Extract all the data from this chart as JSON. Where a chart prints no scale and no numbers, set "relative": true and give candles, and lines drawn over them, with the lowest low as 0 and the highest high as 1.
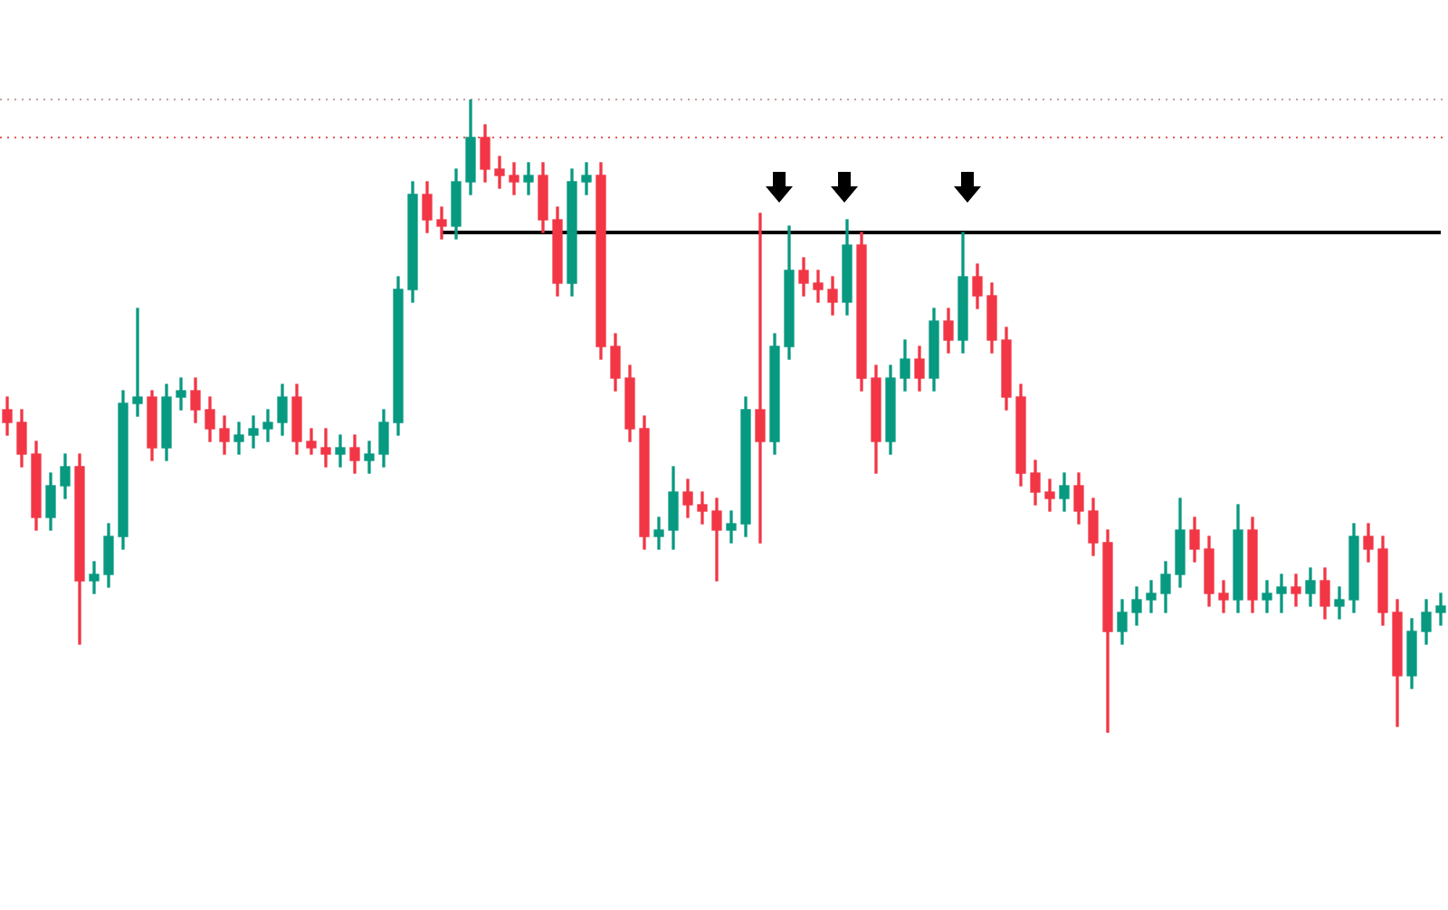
{
  "chart_data": {
    "type": "candlestick",
    "relative": true,
    "legend": false,
    "categories": [
      null,
      null,
      null,
      null,
      null,
      null,
      null,
      null,
      null,
      null,
      null,
      null,
      null,
      null,
      null,
      null,
      null,
      null,
      null,
      null,
      null,
      null,
      null,
      null,
      null,
      null,
      null,
      null,
      null,
      null,
      null,
      null,
      null,
      null,
      null,
      null,
      null,
      null,
      null,
      null,
      null,
      null,
      null,
      null,
      null,
      null,
      null,
      null,
      null,
      null,
      null,
      null,
      null,
      null,
      null,
      null,
      null,
      null,
      null,
      null,
      null,
      null,
      null,
      null,
      null,
      null,
      null,
      null,
      null,
      null,
      null,
      null,
      null,
      null,
      null,
      null,
      null,
      null,
      null,
      null,
      null,
      null,
      null,
      null,
      null,
      null,
      null,
      null,
      null,
      null,
      null,
      null,
      null,
      null,
      null,
      null,
      null,
      null,
      null,
      null
    ],
    "ohlc": [
      [
        0.51,
        0.53,
        0.47,
        0.49
      ],
      [
        0.49,
        0.51,
        0.42,
        0.44
      ],
      [
        0.44,
        0.46,
        0.32,
        0.34
      ],
      [
        0.34,
        0.41,
        0.32,
        0.39
      ],
      [
        0.39,
        0.44,
        0.37,
        0.42
      ],
      [
        0.42,
        0.44,
        0.14,
        0.24
      ],
      [
        0.24,
        0.27,
        0.22,
        0.25
      ],
      [
        0.25,
        0.33,
        0.23,
        0.31
      ],
      [
        0.31,
        0.54,
        0.29,
        0.52
      ],
      [
        0.52,
        0.67,
        0.5,
        0.53
      ],
      [
        0.53,
        0.54,
        0.43,
        0.45
      ],
      [
        0.45,
        0.55,
        0.43,
        0.53
      ],
      [
        0.53,
        0.56,
        0.51,
        0.54
      ],
      [
        0.54,
        0.56,
        0.49,
        0.51
      ],
      [
        0.51,
        0.53,
        0.46,
        0.48
      ],
      [
        0.48,
        0.5,
        0.44,
        0.46
      ],
      [
        0.46,
        0.49,
        0.44,
        0.47
      ],
      [
        0.47,
        0.5,
        0.45,
        0.48
      ],
      [
        0.48,
        0.51,
        0.46,
        0.49
      ],
      [
        0.49,
        0.55,
        0.47,
        0.53
      ],
      [
        0.53,
        0.55,
        0.44,
        0.46
      ],
      [
        0.46,
        0.48,
        0.44,
        0.45
      ],
      [
        0.45,
        0.48,
        0.42,
        0.44
      ],
      [
        0.44,
        0.47,
        0.42,
        0.45
      ],
      [
        0.45,
        0.47,
        0.41,
        0.43
      ],
      [
        0.43,
        0.46,
        0.41,
        0.44
      ],
      [
        0.44,
        0.51,
        0.42,
        0.49
      ],
      [
        0.49,
        0.72,
        0.47,
        0.7
      ],
      [
        0.7,
        0.87,
        0.68,
        0.85
      ],
      [
        0.85,
        0.87,
        0.79,
        0.81
      ],
      [
        0.81,
        0.83,
        0.78,
        0.8
      ],
      [
        0.8,
        0.89,
        0.78,
        0.87
      ],
      [
        0.87,
        1.0,
        0.85,
        0.94
      ],
      [
        0.94,
        0.96,
        0.87,
        0.89
      ],
      [
        0.89,
        0.91,
        0.86,
        0.88
      ],
      [
        0.88,
        0.9,
        0.85,
        0.87
      ],
      [
        0.87,
        0.9,
        0.85,
        0.88
      ],
      [
        0.88,
        0.9,
        0.79,
        0.81
      ],
      [
        0.81,
        0.83,
        0.69,
        0.71
      ],
      [
        0.71,
        0.89,
        0.69,
        0.87
      ],
      [
        0.87,
        0.9,
        0.85,
        0.88
      ],
      [
        0.88,
        0.9,
        0.59,
        0.61
      ],
      [
        0.61,
        0.63,
        0.54,
        0.56
      ],
      [
        0.56,
        0.58,
        0.46,
        0.48
      ],
      [
        0.48,
        0.5,
        0.29,
        0.31
      ],
      [
        0.31,
        0.34,
        0.29,
        0.32
      ],
      [
        0.32,
        0.42,
        0.29,
        0.38
      ],
      [
        0.38,
        0.4,
        0.34,
        0.36
      ],
      [
        0.36,
        0.38,
        0.33,
        0.35
      ],
      [
        0.35,
        0.37,
        0.24,
        0.32
      ],
      [
        0.32,
        0.35,
        0.3,
        0.33
      ],
      [
        0.33,
        0.53,
        0.31,
        0.51
      ],
      [
        0.51,
        0.82,
        0.3,
        0.46
      ],
      [
        0.46,
        0.63,
        0.44,
        0.61
      ],
      [
        0.61,
        0.8,
        0.59,
        0.73
      ],
      [
        0.73,
        0.75,
        0.69,
        0.71
      ],
      [
        0.71,
        0.73,
        0.68,
        0.7
      ],
      [
        0.7,
        0.72,
        0.66,
        0.68
      ],
      [
        0.68,
        0.81,
        0.66,
        0.77
      ],
      [
        0.77,
        0.79,
        0.54,
        0.56
      ],
      [
        0.56,
        0.58,
        0.41,
        0.46
      ],
      [
        0.46,
        0.58,
        0.44,
        0.56
      ],
      [
        0.56,
        0.62,
        0.54,
        0.59
      ],
      [
        0.59,
        0.61,
        0.54,
        0.56
      ],
      [
        0.56,
        0.67,
        0.54,
        0.65
      ],
      [
        0.65,
        0.67,
        0.6,
        0.62
      ],
      [
        0.62,
        0.79,
        0.6,
        0.72
      ],
      [
        0.72,
        0.74,
        0.67,
        0.69
      ],
      [
        0.69,
        0.71,
        0.6,
        0.62
      ],
      [
        0.62,
        0.64,
        0.51,
        0.53
      ],
      [
        0.53,
        0.55,
        0.39,
        0.41
      ],
      [
        0.41,
        0.43,
        0.36,
        0.38
      ],
      [
        0.38,
        0.4,
        0.35,
        0.37
      ],
      [
        0.37,
        0.41,
        0.35,
        0.39
      ],
      [
        0.39,
        0.41,
        0.33,
        0.35
      ],
      [
        0.35,
        0.37,
        0.28,
        0.3
      ],
      [
        0.3,
        0.32,
        0.0,
        0.16
      ],
      [
        0.16,
        0.21,
        0.14,
        0.19
      ],
      [
        0.19,
        0.23,
        0.17,
        0.21
      ],
      [
        0.21,
        0.24,
        0.19,
        0.22
      ],
      [
        0.22,
        0.27,
        0.19,
        0.25
      ],
      [
        0.25,
        0.37,
        0.23,
        0.32
      ],
      [
        0.32,
        0.34,
        0.27,
        0.29
      ],
      [
        0.29,
        0.31,
        0.2,
        0.22
      ],
      [
        0.22,
        0.24,
        0.19,
        0.21
      ],
      [
        0.21,
        0.36,
        0.19,
        0.32
      ],
      [
        0.32,
        0.34,
        0.19,
        0.21
      ],
      [
        0.21,
        0.24,
        0.19,
        0.22
      ],
      [
        0.22,
        0.25,
        0.19,
        0.23
      ],
      [
        0.23,
        0.25,
        0.2,
        0.22
      ],
      [
        0.22,
        0.26,
        0.2,
        0.24
      ],
      [
        0.24,
        0.26,
        0.18,
        0.2
      ],
      [
        0.2,
        0.23,
        0.18,
        0.21
      ],
      [
        0.21,
        0.33,
        0.19,
        0.31
      ],
      [
        0.31,
        0.33,
        0.27,
        0.29
      ],
      [
        0.29,
        0.31,
        0.17,
        0.19
      ],
      [
        0.19,
        0.21,
        0.01,
        0.09
      ],
      [
        0.09,
        0.18,
        0.07,
        0.16
      ],
      [
        0.16,
        0.21,
        0.14,
        0.19
      ],
      [
        0.19,
        0.22,
        0.17,
        0.2
      ]
    ],
    "colors": [
      "#f23645",
      "#f23645",
      "#f23645",
      "#089981",
      "#089981",
      "#f23645",
      "#089981",
      "#089981",
      "#089981",
      "#089981",
      "#f23645",
      "#089981",
      "#089981",
      "#f23645",
      "#f23645",
      "#f23645",
      "#089981",
      "#089981",
      "#089981",
      "#089981",
      "#f23645",
      "#f23645",
      "#f23645",
      "#089981",
      "#f23645",
      "#089981",
      "#089981",
      "#089981",
      "#089981",
      "#f23645",
      "#f23645",
      "#089981",
      "#089981",
      "#f23645",
      "#f23645",
      "#f23645",
      "#089981",
      "#f23645",
      "#f23645",
      "#089981",
      "#089981",
      "#f23645",
      "#f23645",
      "#f23645",
      "#f23645",
      "#089981",
      "#089981",
      "#f23645",
      "#f23645",
      "#f23645",
      "#089981",
      "#089981",
      "#f23645",
      "#089981",
      "#089981",
      "#f23645",
      "#f23645",
      "#f23645",
      "#089981",
      "#f23645",
      "#f23645",
      "#089981",
      "#089981",
      "#f23645",
      "#089981",
      "#f23645",
      "#089981",
      "#f23645",
      "#f23645",
      "#f23645",
      "#f23645",
      "#f23645",
      "#f23645",
      "#089981",
      "#f23645",
      "#f23645",
      "#f23645",
      "#089981",
      "#089981",
      "#089981",
      "#089981",
      "#089981",
      "#f23645",
      "#f23645",
      "#f23645",
      "#089981",
      "#f23645",
      "#089981",
      "#089981",
      "#f23645",
      "#089981",
      "#f23645",
      "#089981",
      "#089981",
      "#f23645",
      "#f23645",
      "#f23645",
      "#089981",
      "#089981",
      "#089981"
    ],
    "series": [
      {
        "type": "line",
        "color": "#000000",
        "values": [
          null,
          null,
          null,
          null,
          null,
          null,
          null,
          null,
          null,
          null,
          null,
          null,
          null,
          null,
          null,
          null,
          null,
          null,
          null,
          null,
          null,
          null,
          null,
          null,
          null,
          null,
          null,
          null,
          null,
          null,
          0.79,
          0.79,
          0.79,
          0.79,
          0.79,
          0.79,
          0.79,
          0.79,
          0.79,
          0.79,
          0.79,
          0.79,
          0.79,
          0.79,
          0.79,
          0.79,
          0.79,
          0.79,
          0.79,
          0.79,
          0.79,
          0.79,
          0.79,
          0.79,
          0.79,
          0.79,
          0.79,
          0.79,
          0.79,
          0.79,
          0.79,
          0.79,
          0.79,
          0.79,
          0.79,
          0.79,
          0.79,
          0.79,
          0.79,
          0.79,
          0.79,
          0.79,
          0.79,
          0.79,
          0.79,
          0.79,
          0.79,
          0.79,
          0.79,
          0.79,
          0.79,
          0.79,
          0.79,
          0.79,
          0.79,
          0.79,
          0.79,
          0.79,
          0.79,
          0.79,
          0.79,
          0.79,
          0.79,
          0.79,
          0.79,
          0.79,
          0.79,
          0.79,
          0.79,
          0.79
        ]
      }
    ],
    "ref_lines": [
      {
        "axis": "y",
        "value": 1.0,
        "color": "#c4a0a0",
        "line_style": "dotted"
      },
      {
        "axis": "y",
        "value": 0.94,
        "color": "#e05a5a",
        "line_style": "dotted"
      }
    ]
  }
}
